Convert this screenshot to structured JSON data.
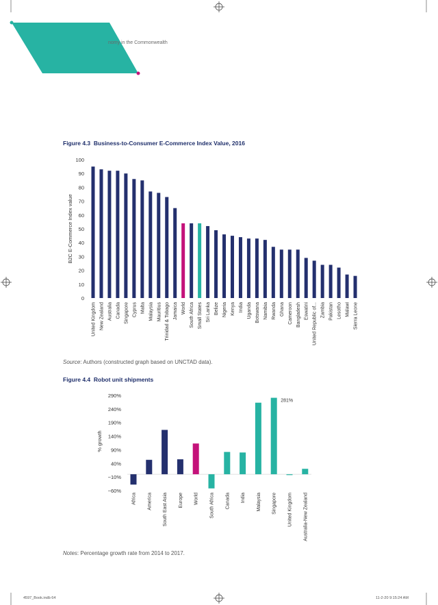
{
  "header": {
    "running_title": "nomy in the Commonwealth"
  },
  "colors": {
    "teal": "#27b3a3",
    "navy": "#24306e",
    "magenta": "#c4127a"
  },
  "figure43": {
    "label": "Figure 4.3",
    "title": "Business-to-Consumer E-Commerce Index Value, 2016",
    "source_label": "Source",
    "source_text": ": Authors (constructed graph based on UNCTAD data)."
  },
  "figure44": {
    "label": "Figure 4.4",
    "title": "Robot unit shipments",
    "notes_label": "Notes",
    "notes_text": ": Percentage growth rate from 2014 to 2017."
  },
  "footer": {
    "left": "4597_Book.indb   64",
    "right": "11-2-20   9:15:24 AM"
  },
  "chart_data": [
    {
      "type": "bar",
      "title": "Business-to-Consumer E-Commerce Index Value, 2016",
      "xlabel": "",
      "ylabel": "B2C E-Commerce Index value",
      "ylim": [
        0,
        100
      ],
      "yticks": [
        "0",
        "10",
        "20",
        "30",
        "40",
        "50",
        "60",
        "70",
        "80",
        "90",
        "100"
      ],
      "grid": false,
      "categories": [
        "United Kingdom",
        "New Zealand",
        "Australia",
        "Canada",
        "Singapore",
        "Cyprus",
        "Malta",
        "Malaysia",
        "Mauritius",
        "Trinidad & Tobago",
        "Jamaica",
        "World",
        "South Africa",
        "Small States",
        "Sri Lanka",
        "Belize",
        "Nigeria",
        "Kenya",
        "India",
        "Uganda",
        "Botswana",
        "Namibia",
        "Rwanda",
        "Ghana",
        "Cameroon",
        "Bangladesh",
        "Eswatini",
        "United Republic of...",
        "Zambia",
        "Pakistan",
        "Lesotho",
        "Malawi",
        "Sierra Leone"
      ],
      "values": [
        95,
        93,
        92,
        92,
        90,
        86,
        85,
        77,
        76,
        73,
        65,
        54,
        54,
        54,
        52,
        49,
        46,
        45,
        44,
        43,
        43,
        42,
        37,
        35,
        35,
        35,
        29,
        27,
        24,
        24,
        22,
        17,
        16
      ],
      "colors": [
        "navy",
        "navy",
        "navy",
        "navy",
        "navy",
        "navy",
        "navy",
        "navy",
        "navy",
        "navy",
        "navy",
        "magenta",
        "navy",
        "teal",
        "navy",
        "navy",
        "navy",
        "navy",
        "navy",
        "navy",
        "navy",
        "navy",
        "navy",
        "navy",
        "navy",
        "navy",
        "navy",
        "navy",
        "navy",
        "navy",
        "navy",
        "navy",
        "navy"
      ]
    },
    {
      "type": "bar",
      "title": "Robot unit shipments",
      "xlabel": "",
      "ylabel": "% growth",
      "ylim": [
        -60,
        290
      ],
      "yticks": [
        "290%",
        "240%",
        "190%",
        "140%",
        "90%",
        "40%",
        "−10%",
        "−60%"
      ],
      "ytick_values": [
        290,
        240,
        190,
        140,
        90,
        40,
        -10,
        -60
      ],
      "grid": false,
      "categories": [
        "Africa",
        "America",
        "South East Asia",
        "Europe",
        "World",
        "South Africa",
        "Canada",
        "India",
        "Malaysia",
        "Singapore",
        "United Kingdom",
        "Australia-New Zealand"
      ],
      "values": [
        -38,
        53,
        163,
        55,
        113,
        -52,
        82,
        80,
        263,
        281,
        -3,
        20
      ],
      "colors": [
        "navy",
        "navy",
        "navy",
        "navy",
        "magenta",
        "teal",
        "teal",
        "teal",
        "teal",
        "teal",
        "teal",
        "teal"
      ],
      "annotation": "281%"
    }
  ]
}
